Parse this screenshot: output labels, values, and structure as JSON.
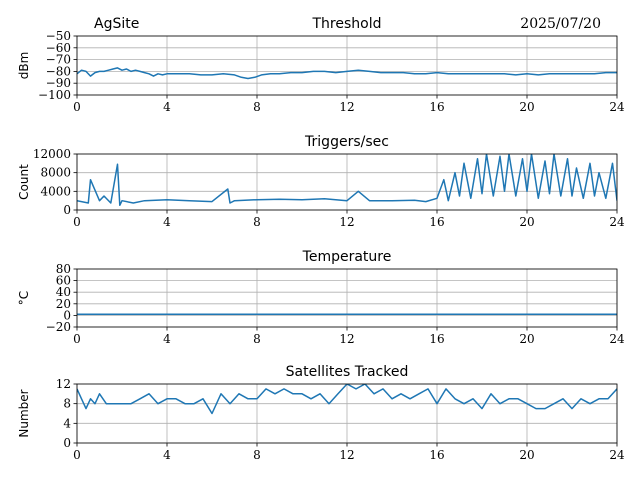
{
  "header": {
    "site": "AgSite",
    "date": "2025/07/20"
  },
  "colors": {
    "series": "#1f77b4"
  },
  "chart_data": [
    {
      "type": "line",
      "title": "Threshold",
      "ylabel": "dBm",
      "xlim": [
        0,
        24
      ],
      "ylim": [
        -100,
        -50
      ],
      "xticks": [
        "0",
        "4",
        "8",
        "12",
        "16",
        "20",
        "24"
      ],
      "yticks": [
        "−50",
        "−60",
        "−70",
        "−80",
        "−90",
        "−100"
      ],
      "ytick_values": [
        -50,
        -60,
        -70,
        -80,
        -90,
        -100
      ],
      "grid": true,
      "series": [
        {
          "x": [
            0,
            0.2,
            0.4,
            0.6,
            0.8,
            1,
            1.2,
            1.4,
            1.6,
            1.8,
            2,
            2.2,
            2.4,
            2.6,
            2.8,
            3,
            3.2,
            3.4,
            3.6,
            3.8,
            4,
            4.5,
            5,
            5.5,
            6,
            6.5,
            7,
            7.3,
            7.6,
            7.9,
            8.2,
            8.6,
            9,
            9.5,
            10,
            10.5,
            11,
            11.5,
            12,
            12.5,
            13,
            13.5,
            14,
            14.5,
            15,
            15.5,
            16,
            16.5,
            17,
            17.5,
            18,
            18.5,
            19,
            19.5,
            20,
            20.5,
            21,
            21.5,
            22,
            22.5,
            23,
            23.5,
            24
          ],
          "y": [
            -82,
            -79,
            -80,
            -84,
            -81,
            -80,
            -80,
            -79,
            -78,
            -77,
            -79,
            -78,
            -80,
            -79,
            -80,
            -81,
            -82,
            -84,
            -82,
            -83,
            -82,
            -82,
            -82,
            -83,
            -83,
            -82,
            -83,
            -85,
            -86,
            -85,
            -83,
            -82,
            -82,
            -81,
            -81,
            -80,
            -80,
            -81,
            -80,
            -79,
            -80,
            -81,
            -81,
            -81,
            -82,
            -82,
            -81,
            -82,
            -82,
            -82,
            -82,
            -82,
            -82,
            -83,
            -82,
            -83,
            -82,
            -82,
            -82,
            -82,
            -82,
            -81,
            -81
          ]
        }
      ]
    },
    {
      "type": "line",
      "title": "Triggers/sec",
      "ylabel": "Count",
      "xlim": [
        0,
        24
      ],
      "ylim": [
        0,
        12000
      ],
      "xticks": [
        "0",
        "4",
        "8",
        "12",
        "16",
        "20",
        "24"
      ],
      "yticks": [
        "0",
        "4000",
        "8000",
        "12000"
      ],
      "ytick_values": [
        0,
        4000,
        8000,
        12000
      ],
      "grid": true,
      "series": [
        {
          "x": [
            0,
            0.5,
            0.6,
            1,
            1.2,
            1.5,
            1.8,
            1.9,
            2,
            2.5,
            3,
            4,
            5,
            6,
            6.7,
            6.8,
            7,
            8,
            9,
            10,
            11,
            12,
            12.5,
            13,
            14,
            15,
            15.5,
            16,
            16.3,
            16.5,
            16.8,
            17,
            17.2,
            17.5,
            17.8,
            18,
            18.2,
            18.5,
            18.8,
            19,
            19.2,
            19.5,
            19.8,
            20,
            20.2,
            20.5,
            20.8,
            21,
            21.2,
            21.5,
            21.8,
            22,
            22.2,
            22.5,
            22.8,
            23,
            23.2,
            23.5,
            23.8,
            24
          ],
          "y": [
            2000,
            1500,
            6500,
            2000,
            3000,
            1500,
            9800,
            1000,
            2000,
            1500,
            2000,
            2200,
            2000,
            1800,
            4500,
            1500,
            2000,
            2200,
            2300,
            2200,
            2400,
            2000,
            4000,
            2000,
            2000,
            2100,
            1800,
            2500,
            6500,
            2000,
            8000,
            3000,
            10000,
            2500,
            11000,
            3500,
            12000,
            3000,
            11500,
            4000,
            12000,
            3000,
            11000,
            4000,
            12000,
            2500,
            10500,
            3500,
            12000,
            3000,
            11000,
            3000,
            9000,
            2500,
            10000,
            3000,
            8000,
            2500,
            10000,
            2000
          ]
        }
      ]
    },
    {
      "type": "line",
      "title": "Temperature",
      "ylabel": "°C",
      "xlim": [
        0,
        24
      ],
      "ylim": [
        -20,
        80
      ],
      "xticks": [
        "0",
        "4",
        "8",
        "12",
        "16",
        "20",
        "24"
      ],
      "yticks": [
        "−20",
        "0",
        "20",
        "40",
        "60",
        "80"
      ],
      "ytick_values": [
        -20,
        0,
        20,
        40,
        60,
        80
      ],
      "grid": true,
      "series": [
        {
          "x": [
            0,
            24
          ],
          "y": [
            2,
            2
          ]
        }
      ]
    },
    {
      "type": "line",
      "title": "Satellites Tracked",
      "ylabel": "Number",
      "xlim": [
        0,
        24
      ],
      "ylim": [
        0,
        12
      ],
      "xticks": [
        "0",
        "4",
        "8",
        "12",
        "16",
        "20",
        "24"
      ],
      "yticks": [
        "0",
        "4",
        "8",
        "12"
      ],
      "ytick_values": [
        0,
        4,
        8,
        12
      ],
      "grid": true,
      "series": [
        {
          "x": [
            0,
            0.2,
            0.4,
            0.6,
            0.8,
            1,
            1.3,
            1.6,
            2,
            2.4,
            2.8,
            3.2,
            3.6,
            4,
            4.4,
            4.8,
            5.2,
            5.6,
            6,
            6.4,
            6.8,
            7.2,
            7.6,
            8,
            8.4,
            8.8,
            9.2,
            9.6,
            10,
            10.4,
            10.8,
            11.2,
            11.6,
            12,
            12.4,
            12.8,
            13.2,
            13.6,
            14,
            14.4,
            14.8,
            15.2,
            15.6,
            16,
            16.4,
            16.8,
            17.2,
            17.6,
            18,
            18.4,
            18.8,
            19.2,
            19.6,
            20,
            20.4,
            20.8,
            21.2,
            21.6,
            22,
            22.4,
            22.8,
            23.2,
            23.6,
            24
          ],
          "y": [
            11,
            9,
            7,
            9,
            8,
            10,
            8,
            8,
            8,
            8,
            9,
            10,
            8,
            9,
            9,
            8,
            8,
            9,
            6,
            10,
            8,
            10,
            9,
            9,
            11,
            10,
            11,
            10,
            10,
            9,
            10,
            8,
            10,
            12,
            11,
            12,
            10,
            11,
            9,
            10,
            9,
            10,
            11,
            8,
            11,
            9,
            8,
            9,
            7,
            10,
            8,
            9,
            9,
            8,
            7,
            7,
            8,
            9,
            7,
            9,
            8,
            9,
            9,
            11
          ]
        }
      ]
    }
  ]
}
